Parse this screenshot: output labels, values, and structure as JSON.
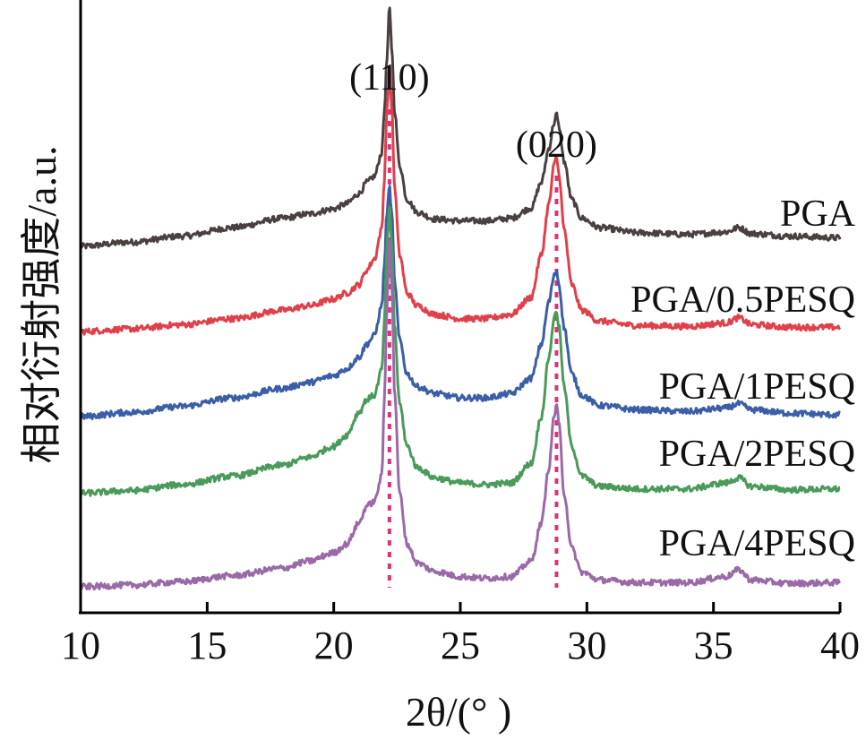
{
  "chart_data": {
    "type": "line",
    "xlabel": "2θ/(° )",
    "ylabel": "相对衍射强度/a.u.",
    "xlim": [
      10,
      40
    ],
    "x_ticks": [
      "10",
      "15",
      "20",
      "25",
      "30",
      "35",
      "40"
    ],
    "grid": false,
    "reference_lines": [
      {
        "x": 22.2,
        "label": "(110)",
        "color": "#e0307a"
      },
      {
        "x": 28.8,
        "label": "(020)",
        "color": "#e0307a"
      }
    ],
    "series": [
      {
        "name": "PGA",
        "color": "#4a4040",
        "offset": 4.0,
        "x": [
          10,
          12,
          14,
          16,
          18,
          19,
          20,
          20.5,
          21,
          21.3,
          21.6,
          21.9,
          22.0,
          22.1,
          22.2,
          22.3,
          22.4,
          22.6,
          22.9,
          23.3,
          24,
          25,
          26,
          27,
          27.8,
          28.2,
          28.5,
          28.7,
          28.8,
          28.9,
          29.1,
          29.4,
          29.8,
          30.5,
          32,
          34,
          35.5,
          36,
          36.5,
          38,
          40
        ],
        "y": [
          0.0,
          0.05,
          0.12,
          0.22,
          0.33,
          0.38,
          0.44,
          0.5,
          0.62,
          0.75,
          0.82,
          1.1,
          1.6,
          2.2,
          2.8,
          2.3,
          1.6,
          0.95,
          0.55,
          0.4,
          0.32,
          0.3,
          0.3,
          0.33,
          0.45,
          0.75,
          1.15,
          1.45,
          1.55,
          1.4,
          1.0,
          0.55,
          0.33,
          0.22,
          0.16,
          0.14,
          0.17,
          0.22,
          0.15,
          0.12,
          0.1
        ]
      },
      {
        "name": "PGA/0.5PESQ",
        "color": "#e0404a",
        "offset": 3.0,
        "x": [
          10,
          12,
          14,
          16,
          18,
          19,
          20,
          20.5,
          21,
          21.3,
          21.6,
          21.9,
          22.0,
          22.1,
          22.2,
          22.3,
          22.4,
          22.6,
          22.9,
          23.3,
          24,
          25,
          26,
          27,
          27.8,
          28.2,
          28.5,
          28.7,
          28.8,
          28.9,
          29.1,
          29.4,
          29.8,
          30.5,
          32,
          34,
          35.5,
          36,
          36.5,
          38,
          40
        ],
        "y": [
          0.0,
          0.03,
          0.08,
          0.15,
          0.25,
          0.3,
          0.38,
          0.45,
          0.55,
          0.72,
          0.85,
          1.2,
          1.8,
          2.6,
          3.1,
          2.6,
          1.7,
          0.9,
          0.45,
          0.3,
          0.2,
          0.15,
          0.15,
          0.2,
          0.4,
          0.9,
          1.5,
          1.95,
          2.05,
          1.85,
          1.2,
          0.55,
          0.25,
          0.12,
          0.07,
          0.06,
          0.1,
          0.16,
          0.08,
          0.05,
          0.05
        ]
      },
      {
        "name": "PGA/1PESQ",
        "color": "#3a5ea8",
        "offset": 2.0,
        "x": [
          10,
          12,
          14,
          16,
          18,
          19,
          20,
          20.5,
          21,
          21.3,
          21.6,
          21.9,
          22.0,
          22.1,
          22.2,
          22.3,
          22.4,
          22.6,
          22.9,
          23.3,
          24,
          25,
          26,
          27,
          27.8,
          28.2,
          28.5,
          28.7,
          28.8,
          28.9,
          29.1,
          29.4,
          29.8,
          30.5,
          32,
          34,
          35.5,
          36,
          36.5,
          38,
          40
        ],
        "y": [
          0.0,
          0.05,
          0.12,
          0.22,
          0.33,
          0.4,
          0.48,
          0.56,
          0.7,
          0.85,
          0.95,
          1.3,
          1.8,
          2.4,
          2.7,
          2.35,
          1.6,
          0.9,
          0.5,
          0.35,
          0.27,
          0.22,
          0.22,
          0.27,
          0.45,
          0.85,
          1.35,
          1.65,
          1.72,
          1.55,
          1.05,
          0.5,
          0.25,
          0.13,
          0.08,
          0.06,
          0.1,
          0.15,
          0.08,
          0.04,
          0.02
        ]
      },
      {
        "name": "PGA/2PESQ",
        "color": "#4a9a5a",
        "offset": 1.1,
        "x": [
          10,
          12,
          14,
          16,
          18,
          19,
          20,
          20.5,
          21,
          21.3,
          21.6,
          21.9,
          22.0,
          22.1,
          22.2,
          22.3,
          22.4,
          22.6,
          22.9,
          23.3,
          24,
          25,
          26,
          27,
          27.8,
          28.2,
          28.5,
          28.7,
          28.8,
          28.9,
          29.1,
          29.4,
          29.8,
          30.5,
          32,
          34,
          35.5,
          36,
          36.5,
          38,
          40
        ],
        "y": [
          0.0,
          0.03,
          0.1,
          0.2,
          0.33,
          0.42,
          0.55,
          0.68,
          0.95,
          1.1,
          1.15,
          1.45,
          2.0,
          2.9,
          3.35,
          2.9,
          1.95,
          1.05,
          0.55,
          0.3,
          0.18,
          0.12,
          0.1,
          0.12,
          0.35,
          0.9,
          1.6,
          2.05,
          2.15,
          1.95,
          1.25,
          0.55,
          0.2,
          0.08,
          0.05,
          0.05,
          0.12,
          0.18,
          0.08,
          0.04,
          0.05
        ]
      },
      {
        "name": "PGA/4PESQ",
        "color": "#9a6aa8",
        "offset": 0.0,
        "x": [
          10,
          12,
          14,
          16,
          18,
          19,
          20,
          20.5,
          21,
          21.3,
          21.6,
          21.9,
          22.0,
          22.1,
          22.2,
          22.3,
          22.4,
          22.6,
          22.9,
          23.3,
          24,
          25,
          26,
          27,
          27.8,
          28.2,
          28.5,
          28.7,
          28.8,
          28.9,
          29.1,
          29.4,
          29.8,
          30.5,
          32,
          34,
          35.5,
          36,
          36.5,
          38,
          40
        ],
        "y": [
          0.0,
          0.02,
          0.06,
          0.13,
          0.22,
          0.3,
          0.4,
          0.5,
          0.75,
          0.95,
          1.0,
          1.3,
          2.2,
          3.3,
          4.1,
          3.5,
          2.3,
          1.1,
          0.5,
          0.28,
          0.18,
          0.12,
          0.1,
          0.12,
          0.3,
          0.75,
          1.4,
          2.0,
          2.15,
          1.9,
          1.1,
          0.45,
          0.17,
          0.08,
          0.05,
          0.05,
          0.12,
          0.2,
          0.08,
          0.04,
          0.05
        ]
      }
    ]
  }
}
